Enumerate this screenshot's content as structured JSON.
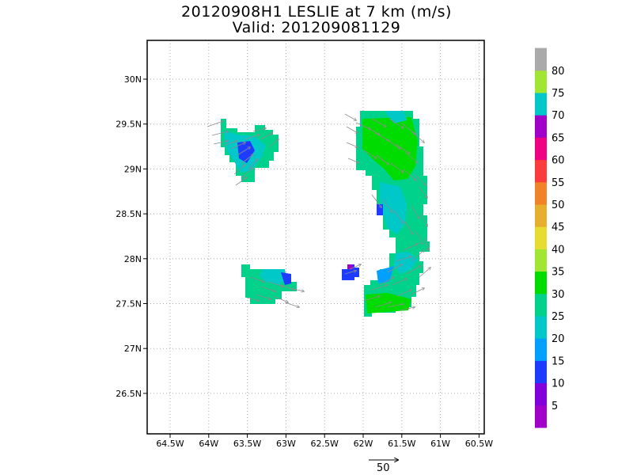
{
  "title_line1": "20120908H1 LESLIE at 7 km (m/s)",
  "title_line2": "Valid: 201209081129",
  "chart_data": {
    "type": "heatmap",
    "title": "20120908H1 LESLIE at 7 km (m/s)",
    "subtitle": "Valid: 201209081129",
    "xlabel": "",
    "ylabel": "",
    "x_ticks": [
      "64.5W",
      "64W",
      "63.5W",
      "63W",
      "62.5W",
      "62W",
      "61.5W",
      "61W",
      "60.5W"
    ],
    "x_tick_values": [
      -64.5,
      -64,
      -63.5,
      -63,
      -62.5,
      -62,
      -61.5,
      -61,
      -60.5
    ],
    "y_ticks": [
      "26.5N",
      "27N",
      "27.5N",
      "28N",
      "28.5N",
      "29N",
      "29.5N",
      "30N"
    ],
    "y_tick_values": [
      26.5,
      27,
      27.5,
      28,
      28.5,
      29,
      29.5,
      30
    ],
    "xlim": [
      -64.75,
      -60.45
    ],
    "ylim": [
      26.05,
      30.4
    ],
    "grid": true,
    "colorbar": {
      "labels": [
        "5",
        "10",
        "15",
        "20",
        "25",
        "30",
        "35",
        "40",
        "45",
        "50",
        "55",
        "60",
        "65",
        "70",
        "75",
        "80"
      ],
      "colors": [
        "#a000c8",
        "#8200dc",
        "#1e3cff",
        "#00a0ff",
        "#00c8c8",
        "#00d28c",
        "#00dc00",
        "#a0e632",
        "#e6dc32",
        "#e6af2d",
        "#f08228",
        "#fa3c3c",
        "#f00082",
        "#a000c8",
        "#00c8c8",
        "#a0e632",
        "#aaaaaa"
      ]
    },
    "wind_reference": {
      "label": "50",
      "units": "m/s"
    },
    "regions": [
      {
        "name": "northwest patch",
        "speed_range": [
          15,
          25
        ],
        "predominant_speed": 20,
        "lon_range": [
          -63.75,
          -63.05
        ],
        "lat_range": [
          28.85,
          29.55
        ]
      },
      {
        "name": "southwest patch",
        "speed_range": [
          15,
          25
        ],
        "predominant_speed": 22,
        "lon_range": [
          -63.55,
          -62.95
        ],
        "lat_range": [
          27.5,
          27.88
        ]
      },
      {
        "name": "small central patch",
        "speed_range": [
          10,
          15
        ],
        "predominant_speed": 12,
        "lon_range": [
          -62.3,
          -62.05
        ],
        "lat_range": [
          27.75,
          27.9
        ]
      },
      {
        "name": "eastern arc (eyewall)",
        "speed_range": [
          10,
          30
        ],
        "predominant_speed": 25,
        "lon_range": [
          -62.05,
          -61.15
        ],
        "lat_range": [
          27.4,
          29.65
        ]
      }
    ]
  }
}
